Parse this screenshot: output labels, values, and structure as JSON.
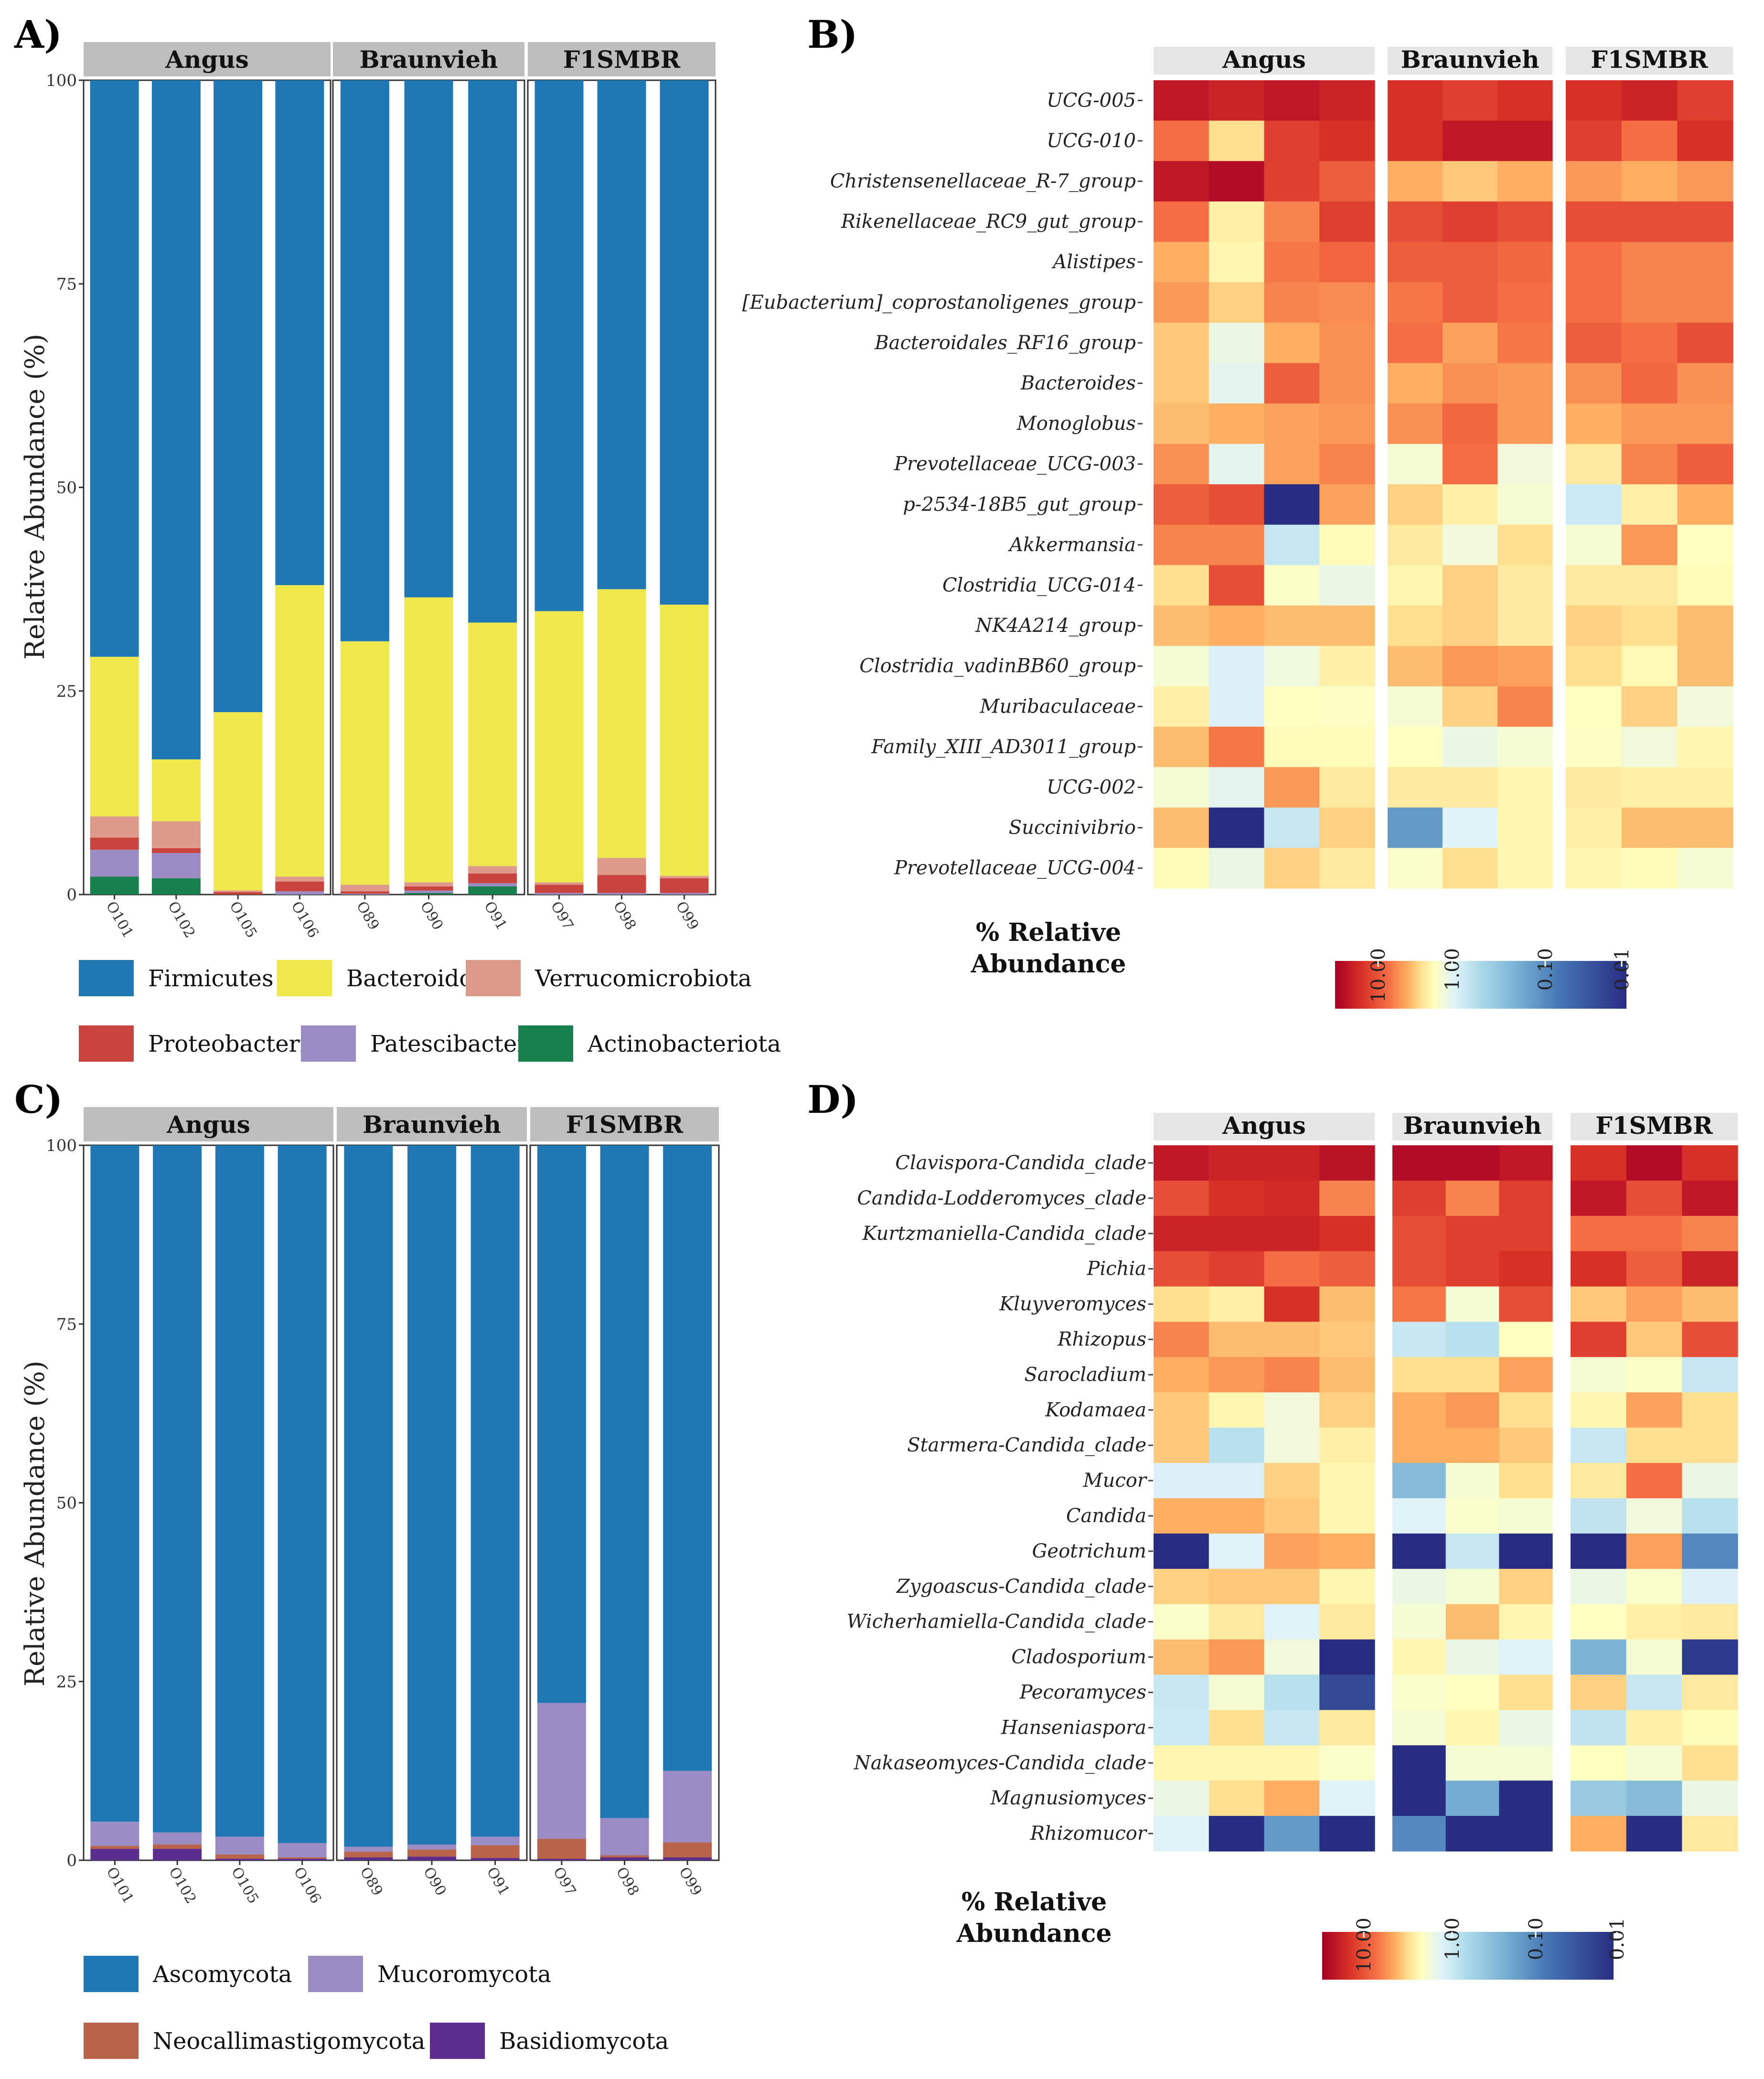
{
  "chart_data": [
    {
      "panel": "A)",
      "type": "stacked-bar",
      "ylabel": "Relative Abundance (%)",
      "ylim": [
        0,
        100
      ],
      "yticks": [
        "0",
        "25",
        "50",
        "75",
        "100"
      ],
      "groups": [
        {
          "name": "Angus",
          "samples": [
            "O101",
            "O102",
            "O105",
            "O106"
          ]
        },
        {
          "name": "Braunvieh",
          "samples": [
            "O89",
            "O90",
            "O91"
          ]
        },
        {
          "name": "F1SMBR",
          "samples": [
            "O97",
            "O98",
            "O99"
          ]
        }
      ],
      "stack_order": [
        "Actinobacteriota",
        "Patescibacteria",
        "Proteobacteria",
        "Verrucomicrobiota",
        "Bacteroidota",
        "Firmicutes"
      ],
      "series": [
        {
          "name": "Firmicutes",
          "color": "#1f78b4",
          "values": [
            70.8,
            83.4,
            77.6,
            62.0,
            68.9,
            63.5,
            66.6,
            65.2,
            62.5,
            64.4
          ]
        },
        {
          "name": "Bacteroidota",
          "color": "#eee84d",
          "values": [
            19.6,
            7.6,
            21.9,
            35.8,
            29.9,
            35.0,
            29.9,
            33.3,
            33.0,
            33.3
          ]
        },
        {
          "name": "Verrucomicrobiota",
          "color": "#dd9a8b",
          "values": [
            2.6,
            3.3,
            0.2,
            0.6,
            0.8,
            0.5,
            0.9,
            0.3,
            2.1,
            0.3
          ]
        },
        {
          "name": "Proteobacteria",
          "color": "#c9443f",
          "values": [
            1.5,
            0.6,
            0.3,
            1.2,
            0.3,
            0.5,
            1.2,
            1.0,
            2.2,
            1.8
          ]
        },
        {
          "name": "Patescibacteria",
          "color": "#9c8cc4",
          "values": [
            3.3,
            3.1,
            0,
            0.4,
            0.1,
            0.3,
            0.4,
            0.2,
            0.2,
            0.2
          ]
        },
        {
          "name": "Actinobacteriota",
          "color": "#17804c",
          "values": [
            2.2,
            2.0,
            0,
            0,
            0,
            0.2,
            1.0,
            0,
            0,
            0
          ]
        }
      ],
      "legend": [
        "Firmicutes",
        "Bacteroidota",
        "Verrucomicrobiota",
        "Proteobacteria",
        "Patescibacteria",
        "Actinobacteriota"
      ]
    },
    {
      "panel": "C)",
      "type": "stacked-bar",
      "ylabel": "Relative Abundance (%)",
      "ylim": [
        0,
        100
      ],
      "yticks": [
        "0",
        "25",
        "50",
        "75",
        "100"
      ],
      "groups": [
        {
          "name": "Angus",
          "samples": [
            "O101",
            "O102",
            "O105",
            "O106"
          ]
        },
        {
          "name": "Braunvieh",
          "samples": [
            "O89",
            "O90",
            "O91"
          ]
        },
        {
          "name": "F1SMBR",
          "samples": [
            "O97",
            "O98",
            "O99"
          ]
        }
      ],
      "stack_order": [
        "Basidiomycota",
        "Neocallimastigomycota",
        "Mucoromycota",
        "Ascomycota"
      ],
      "series": [
        {
          "name": "Ascomycota",
          "color": "#1f78b4",
          "values": [
            94.6,
            96.1,
            96.7,
            97.6,
            98.1,
            97.8,
            96.7,
            78.0,
            94.1,
            87.5
          ]
        },
        {
          "name": "Mucoromycota",
          "color": "#9c8cc4",
          "values": [
            3.4,
            1.7,
            2.5,
            2.0,
            0.7,
            0.7,
            1.2,
            19.0,
            5.2,
            10.0
          ]
        },
        {
          "name": "Neocallimastigomycota",
          "color": "#b9634a",
          "values": [
            0.4,
            0.6,
            0.6,
            0.2,
            0.8,
            1.0,
            1.8,
            2.8,
            0.3,
            2.1
          ]
        },
        {
          "name": "Basidiomycota",
          "color": "#5b2d8e",
          "values": [
            1.6,
            1.6,
            0.2,
            0.2,
            0.4,
            0.5,
            0.3,
            0.2,
            0.4,
            0.4
          ]
        }
      ],
      "legend": [
        "Ascomycota",
        "Mucoromycota",
        "Neocallimastigomycota",
        "Basidiomycota"
      ]
    },
    {
      "panel": "B)",
      "type": "heatmap",
      "scale": "log10 % relative abundance",
      "groups": [
        {
          "name": "Angus",
          "columns": 4
        },
        {
          "name": "Braunvieh",
          "columns": 3
        },
        {
          "name": "F1SMBR",
          "columns": 3
        }
      ],
      "rows": [
        "UCG-005",
        "UCG-010",
        "Christensenellaceae_R-7_group",
        "Rikenellaceae_RC9_gut_group",
        "Alistipes",
        "[Eubacterium]_coprostanoligenes_group",
        "Bacteroidales_RF16_group",
        "Bacteroides",
        "Monoglobus",
        "Prevotellaceae_UCG-003",
        "p-2534-18B5_gut_group",
        "Akkermansia",
        "Clostridia_UCG-014",
        "NK4A214_group",
        "Clostridia_vadinBB60_group",
        "Muribaculaceae",
        "Family_XIII_AD3011_group",
        "UCG-002",
        "Succinivibrio",
        "Prevotellaceae_UCG-004"
      ],
      "values": [
        [
          1.0,
          0.95,
          1.0,
          0.95,
          0.9,
          0.85,
          0.9,
          0.9,
          0.95,
          0.85
        ],
        [
          0.7,
          0.45,
          0.85,
          0.9,
          0.9,
          1.0,
          1.0,
          0.85,
          0.7,
          0.9
        ],
        [
          1.0,
          1.05,
          0.85,
          0.75,
          0.55,
          0.5,
          0.55,
          0.6,
          0.55,
          0.6
        ],
        [
          0.7,
          0.4,
          0.65,
          0.85,
          0.8,
          0.85,
          0.8,
          0.8,
          0.8,
          0.8
        ],
        [
          0.55,
          0.38,
          0.68,
          0.73,
          0.75,
          0.75,
          0.72,
          0.7,
          0.65,
          0.65
        ],
        [
          0.6,
          0.48,
          0.65,
          0.63,
          0.68,
          0.75,
          0.7,
          0.7,
          0.65,
          0.65
        ],
        [
          0.5,
          0.25,
          0.55,
          0.62,
          0.7,
          0.58,
          0.68,
          0.75,
          0.7,
          0.8
        ],
        [
          0.5,
          0.22,
          0.75,
          0.62,
          0.55,
          0.62,
          0.6,
          0.62,
          0.72,
          0.62
        ],
        [
          0.52,
          0.55,
          0.58,
          0.6,
          0.62,
          0.72,
          0.6,
          0.55,
          0.6,
          0.6
        ],
        [
          0.62,
          0.22,
          0.58,
          0.65,
          0.3,
          0.7,
          0.28,
          0.42,
          0.65,
          0.75
        ],
        [
          0.75,
          0.8,
          -1.1,
          0.58,
          0.48,
          0.4,
          0.3,
          0.12,
          0.4,
          0.55
        ],
        [
          0.65,
          0.65,
          0.1,
          0.36,
          0.42,
          0.28,
          0.45,
          0.3,
          0.6,
          0.35
        ],
        [
          0.45,
          0.8,
          0.33,
          0.25,
          0.38,
          0.48,
          0.42,
          0.42,
          0.42,
          0.36
        ],
        [
          0.52,
          0.55,
          0.52,
          0.52,
          0.45,
          0.48,
          0.42,
          0.48,
          0.45,
          0.52
        ],
        [
          0.3,
          0.18,
          0.27,
          0.4,
          0.52,
          0.6,
          0.58,
          0.45,
          0.37,
          0.52
        ],
        [
          0.4,
          0.18,
          0.35,
          0.34,
          0.3,
          0.48,
          0.65,
          0.35,
          0.48,
          0.28
        ],
        [
          0.52,
          0.68,
          0.36,
          0.36,
          0.35,
          0.25,
          0.3,
          0.34,
          0.28,
          0.38
        ],
        [
          0.3,
          0.22,
          0.6,
          0.42,
          0.42,
          0.42,
          0.38,
          0.42,
          0.4,
          0.4
        ],
        [
          0.52,
          -1.1,
          0.1,
          0.48,
          -0.4,
          0.2,
          0.38,
          0.4,
          0.52,
          0.52
        ],
        [
          0.36,
          0.25,
          0.48,
          0.42,
          0.32,
          0.45,
          0.38,
          0.38,
          0.36,
          0.3
        ]
      ],
      "colorbar": {
        "title": "% Relative Abundance",
        "ticks": [
          "10.00",
          "1.00",
          "0.10",
          "0.01"
        ]
      }
    },
    {
      "panel": "D)",
      "type": "heatmap",
      "scale": "log10 % relative abundance",
      "groups": [
        {
          "name": "Angus",
          "columns": 4
        },
        {
          "name": "Braunvieh",
          "columns": 3
        },
        {
          "name": "F1SMBR",
          "columns": 3
        }
      ],
      "rows": [
        "Clavispora-Candida_clade",
        "Candida-Lodderomyces_clade",
        "Kurtzmaniella-Candida_clade",
        "Pichia",
        "Kluyveromyces",
        "Rhizopus",
        "Sarocladium",
        "Kodamaea",
        "Starmera-Candida_clade",
        "Mucor",
        "Candida",
        "Geotrichum",
        "Zygoascus-Candida_clade",
        "Wicherhamiella-Candida_clade",
        "Cladosporium",
        "Pecoramyces",
        "Hanseniaspora",
        "Nakaseomyces-Candida_clade",
        "Magnusiomyces",
        "Rhizomucor"
      ],
      "values": [
        [
          1.0,
          0.95,
          0.95,
          1.02,
          1.05,
          1.05,
          1.0,
          0.9,
          1.05,
          0.9
        ],
        [
          0.8,
          0.9,
          0.92,
          0.65,
          0.85,
          0.65,
          0.85,
          1.0,
          0.8,
          1.0
        ],
        [
          0.95,
          0.95,
          0.95,
          0.9,
          0.8,
          0.85,
          0.85,
          0.7,
          0.7,
          0.65
        ],
        [
          0.8,
          0.85,
          0.7,
          0.75,
          0.8,
          0.85,
          0.9,
          0.9,
          0.75,
          0.95
        ],
        [
          0.45,
          0.4,
          0.9,
          0.52,
          0.68,
          0.3,
          0.8,
          0.5,
          0.58,
          0.52
        ],
        [
          0.65,
          0.52,
          0.52,
          0.5,
          0.1,
          0.05,
          0.35,
          0.85,
          0.5,
          0.8
        ],
        [
          0.55,
          0.6,
          0.65,
          0.52,
          0.45,
          0.45,
          0.58,
          0.3,
          0.33,
          0.1
        ],
        [
          0.5,
          0.38,
          0.28,
          0.48,
          0.55,
          0.6,
          0.45,
          0.38,
          0.58,
          0.45
        ],
        [
          0.5,
          0.05,
          0.28,
          0.4,
          0.55,
          0.55,
          0.5,
          0.1,
          0.45,
          0.45
        ],
        [
          0.18,
          0.18,
          0.48,
          0.38,
          -0.2,
          0.3,
          0.45,
          0.42,
          0.7,
          0.25
        ],
        [
          0.55,
          0.55,
          0.5,
          0.38,
          0.2,
          0.32,
          0.3,
          0.08,
          0.28,
          0.05
        ],
        [
          -1.1,
          0.2,
          0.58,
          0.55,
          -1.1,
          0.1,
          -1.1,
          -1.1,
          0.58,
          -0.5
        ],
        [
          0.48,
          0.5,
          0.5,
          0.38,
          0.25,
          0.3,
          0.48,
          0.25,
          0.32,
          0.18
        ],
        [
          0.32,
          0.42,
          0.2,
          0.42,
          0.3,
          0.52,
          0.38,
          0.35,
          0.4,
          0.42
        ],
        [
          0.52,
          0.6,
          0.28,
          -1.1,
          0.38,
          0.25,
          0.2,
          -0.25,
          0.3,
          -1.0
        ],
        [
          0.1,
          0.3,
          0.05,
          -0.9,
          0.32,
          0.35,
          0.45,
          0.48,
          0.1,
          0.42
        ],
        [
          0.12,
          0.45,
          0.1,
          0.42,
          0.3,
          0.38,
          0.25,
          0.08,
          0.4,
          0.36
        ],
        [
          0.38,
          0.38,
          0.38,
          0.32,
          -1.1,
          0.3,
          0.3,
          0.35,
          0.3,
          0.45
        ],
        [
          0.25,
          0.45,
          0.55,
          0.2,
          -1.1,
          -0.3,
          -1.1,
          -0.1,
          -0.2,
          0.25
        ],
        [
          0.2,
          -1.1,
          -0.4,
          -1.1,
          -0.5,
          -1.1,
          -1.1,
          0.55,
          -1.1,
          0.42
        ]
      ],
      "colorbar": {
        "title": "% Relative Abundance",
        "ticks": [
          "10.00",
          "1.00",
          "0.10",
          "0.01"
        ]
      }
    }
  ]
}
